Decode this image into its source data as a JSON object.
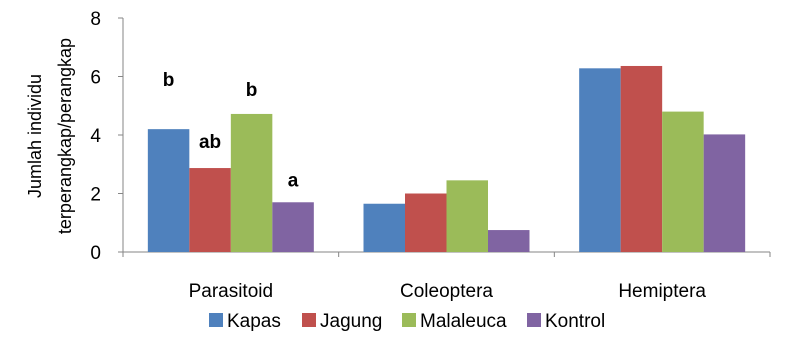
{
  "chart_data": {
    "type": "bar",
    "categories": [
      "Parasitoid",
      "Coleoptera",
      "Hemiptera"
    ],
    "series": [
      {
        "name": "Kapas",
        "values": [
          4.2,
          1.65,
          6.28
        ],
        "color": "#4F81BD"
      },
      {
        "name": "Jagung",
        "values": [
          2.87,
          2.0,
          6.36
        ],
        "color": "#C0504D"
      },
      {
        "name": "Malaleuca",
        "values": [
          4.72,
          2.45,
          4.8
        ],
        "color": "#9BBB59"
      },
      {
        "name": "Kontrol",
        "values": [
          1.7,
          0.75,
          4.02
        ],
        "color": "#8064A2"
      }
    ],
    "annotations": [
      {
        "category": "Parasitoid",
        "series": "Kapas",
        "text": "b"
      },
      {
        "category": "Parasitoid",
        "series": "Jagung",
        "text": "ab"
      },
      {
        "category": "Parasitoid",
        "series": "Malaleuca",
        "text": "b"
      },
      {
        "category": "Parasitoid",
        "series": "Kontrol",
        "text": "a"
      }
    ],
    "ylabel": [
      "Jumlah individu",
      "terperangkap/perangkap"
    ],
    "ylim": [
      0,
      8
    ],
    "yticks": [
      0,
      2,
      4,
      6,
      8
    ],
    "grid": false,
    "legend_position": "bottom"
  }
}
